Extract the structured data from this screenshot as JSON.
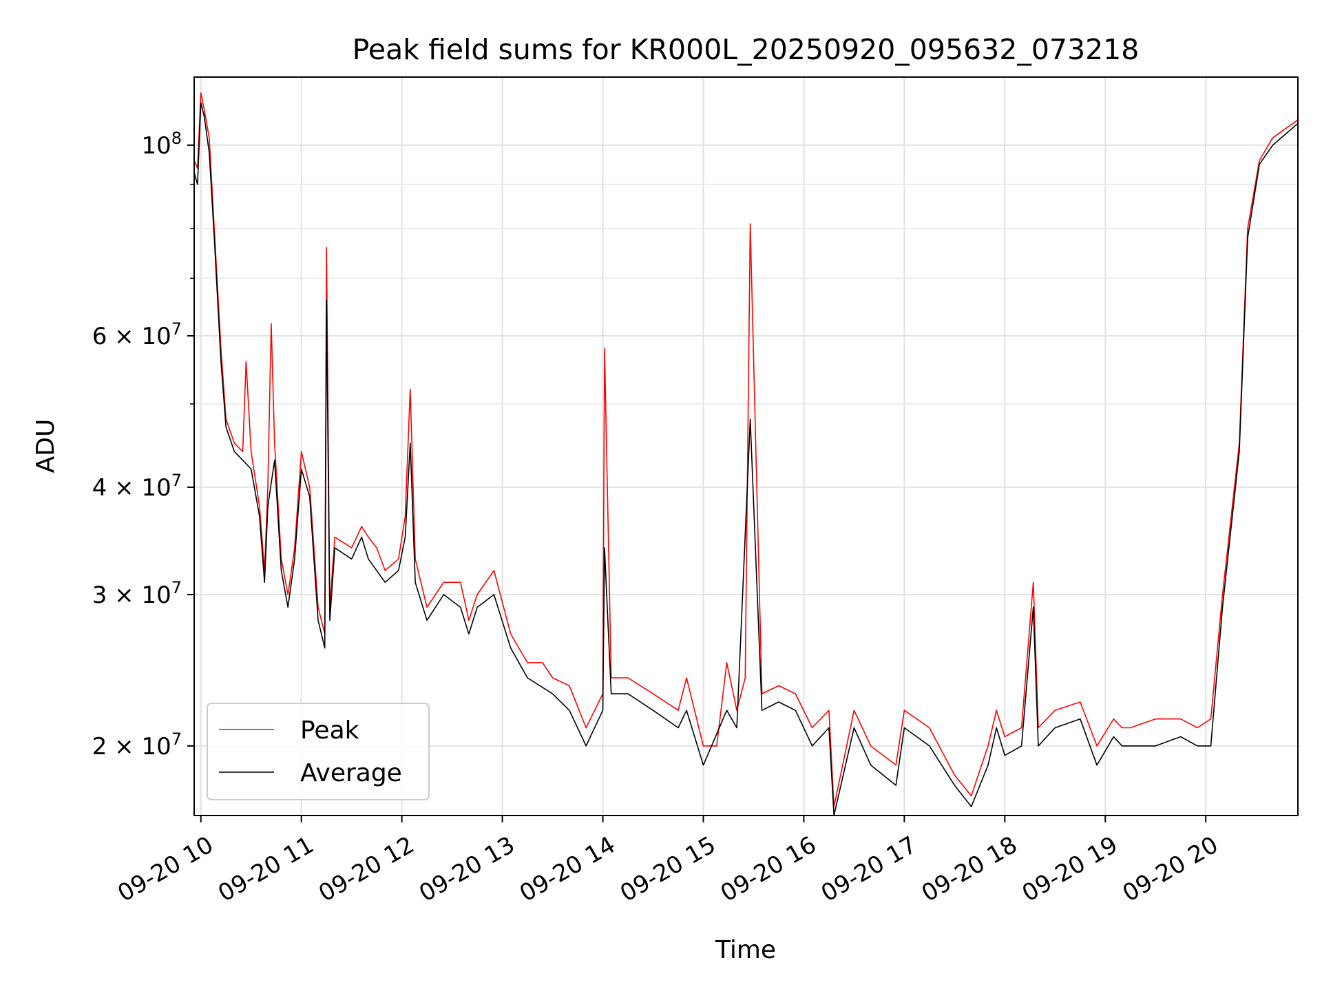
{
  "chart_data": {
    "type": "line",
    "title": "Peak field sums for KR000L_20250920_095632_073218",
    "xlabel": "Time",
    "ylabel": "ADU",
    "x_axis": {
      "kind": "time",
      "range": [
        "2025-09-20 09:56",
        "2025-09-20 20:55"
      ],
      "ticks": [
        "2025-09-20 10:00",
        "2025-09-20 11:00",
        "2025-09-20 12:00",
        "2025-09-20 13:00",
        "2025-09-20 14:00",
        "2025-09-20 15:00",
        "2025-09-20 16:00",
        "2025-09-20 17:00",
        "2025-09-20 18:00",
        "2025-09-20 19:00",
        "2025-09-20 20:00"
      ],
      "tick_labels": [
        "09-20 10",
        "09-20 11",
        "09-20 12",
        "09-20 13",
        "09-20 14",
        "09-20 15",
        "09-20 16",
        "09-20 17",
        "09-20 18",
        "09-20 19",
        "09-20 20"
      ]
    },
    "y_axis": {
      "scale": "log",
      "ylim": [
        16600000,
        120000000
      ],
      "major_ticks": [
        20000000,
        30000000,
        40000000,
        60000000,
        100000000
      ],
      "major_tick_labels": [
        {
          "mantissa": "2",
          "exponent": "7"
        },
        {
          "mantissa": "3",
          "exponent": "7"
        },
        {
          "mantissa": "4",
          "exponent": "7"
        },
        {
          "mantissa": "6",
          "exponent": "7"
        },
        {
          "mantissa": "",
          "exponent": "8"
        }
      ],
      "minor_ticks": [
        50000000,
        70000000,
        80000000,
        90000000
      ]
    },
    "grid": true,
    "legend": {
      "placement": "lower-left",
      "entries": [
        {
          "label": "Peak",
          "color": "#ff0000"
        },
        {
          "label": "Average",
          "color": "#000000"
        }
      ]
    },
    "series": [
      {
        "name": "Peak",
        "color": "#ff0000",
        "x": [
          "2025-09-20 09:56",
          "2025-09-20 09:58",
          "2025-09-20 10:00",
          "2025-09-20 10:02",
          "2025-09-20 10:05",
          "2025-09-20 10:08",
          "2025-09-20 10:12",
          "2025-09-20 10:15",
          "2025-09-20 10:20",
          "2025-09-20 10:25",
          "2025-09-20 10:27",
          "2025-09-20 10:30",
          "2025-09-20 10:35",
          "2025-09-20 10:38",
          "2025-09-20 10:40",
          "2025-09-20 10:42",
          "2025-09-20 10:44",
          "2025-09-20 10:48",
          "2025-09-20 10:52",
          "2025-09-20 10:56",
          "2025-09-20 11:00",
          "2025-09-20 11:05",
          "2025-09-20 11:10",
          "2025-09-20 11:14",
          "2025-09-20 11:15",
          "2025-09-20 11:17",
          "2025-09-20 11:20",
          "2025-09-20 11:30",
          "2025-09-20 11:36",
          "2025-09-20 11:40",
          "2025-09-20 11:45",
          "2025-09-20 11:50",
          "2025-09-20 11:58",
          "2025-09-20 12:02",
          "2025-09-20 12:05",
          "2025-09-20 12:08",
          "2025-09-20 12:15",
          "2025-09-20 12:25",
          "2025-09-20 12:35",
          "2025-09-20 12:40",
          "2025-09-20 12:45",
          "2025-09-20 12:55",
          "2025-09-20 13:05",
          "2025-09-20 13:15",
          "2025-09-20 13:24",
          "2025-09-20 13:30",
          "2025-09-20 13:40",
          "2025-09-20 13:50",
          "2025-09-20 14:00",
          "2025-09-20 14:01",
          "2025-09-20 14:05",
          "2025-09-20 14:15",
          "2025-09-20 14:30",
          "2025-09-20 14:45",
          "2025-09-20 14:50",
          "2025-09-20 15:00",
          "2025-09-20 15:08",
          "2025-09-20 15:14",
          "2025-09-20 15:20",
          "2025-09-20 15:25",
          "2025-09-20 15:28",
          "2025-09-20 15:35",
          "2025-09-20 15:45",
          "2025-09-20 15:55",
          "2025-09-20 16:05",
          "2025-09-20 16:15",
          "2025-09-20 16:18",
          "2025-09-20 16:30",
          "2025-09-20 16:40",
          "2025-09-20 16:55",
          "2025-09-20 17:00",
          "2025-09-20 17:15",
          "2025-09-20 17:30",
          "2025-09-20 17:40",
          "2025-09-20 17:50",
          "2025-09-20 17:55",
          "2025-09-20 18:00",
          "2025-09-20 18:10",
          "2025-09-20 18:17",
          "2025-09-20 18:20",
          "2025-09-20 18:30",
          "2025-09-20 18:45",
          "2025-09-20 18:55",
          "2025-09-20 19:05",
          "2025-09-20 19:10",
          "2025-09-20 19:15",
          "2025-09-20 19:30",
          "2025-09-20 19:45",
          "2025-09-20 19:55",
          "2025-09-20 20:03",
          "2025-09-20 20:10",
          "2025-09-20 20:20",
          "2025-09-20 20:25",
          "2025-09-20 20:32",
          "2025-09-20 20:40",
          "2025-09-20 20:55"
        ],
        "y": [
          96000000,
          94000000,
          115000000,
          110000000,
          102000000,
          80000000,
          58000000,
          48000000,
          45000000,
          44000000,
          56000000,
          44000000,
          38000000,
          32000000,
          40000000,
          62000000,
          45000000,
          33000000,
          30000000,
          34000000,
          44000000,
          40000000,
          29000000,
          27000000,
          76000000,
          29000000,
          35000000,
          34000000,
          36000000,
          35000000,
          34000000,
          32000000,
          33000000,
          37000000,
          52000000,
          33000000,
          29000000,
          31000000,
          31000000,
          28000000,
          30000000,
          32000000,
          27000000,
          25000000,
          25000000,
          24000000,
          23500000,
          21000000,
          23000000,
          58000000,
          24000000,
          24000000,
          23000000,
          22000000,
          24000000,
          20000000,
          20000000,
          25000000,
          22000000,
          24000000,
          81000000,
          23000000,
          23500000,
          23000000,
          21000000,
          22000000,
          17000000,
          22000000,
          20000000,
          19000000,
          22000000,
          21000000,
          18500000,
          17500000,
          20000000,
          22000000,
          20500000,
          21000000,
          31000000,
          21000000,
          22000000,
          22500000,
          20000000,
          21500000,
          21000000,
          21000000,
          21500000,
          21500000,
          21000000,
          21500000,
          30000000,
          45000000,
          80000000,
          96000000,
          102000000,
          107000000
        ]
      },
      {
        "name": "Average",
        "color": "#000000",
        "x": [
          "2025-09-20 09:56",
          "2025-09-20 09:58",
          "2025-09-20 10:00",
          "2025-09-20 10:02",
          "2025-09-20 10:05",
          "2025-09-20 10:08",
          "2025-09-20 10:12",
          "2025-09-20 10:15",
          "2025-09-20 10:20",
          "2025-09-20 10:25",
          "2025-09-20 10:30",
          "2025-09-20 10:35",
          "2025-09-20 10:38",
          "2025-09-20 10:40",
          "2025-09-20 10:44",
          "2025-09-20 10:48",
          "2025-09-20 10:52",
          "2025-09-20 10:56",
          "2025-09-20 11:00",
          "2025-09-20 11:05",
          "2025-09-20 11:10",
          "2025-09-20 11:14",
          "2025-09-20 11:15",
          "2025-09-20 11:17",
          "2025-09-20 11:20",
          "2025-09-20 11:30",
          "2025-09-20 11:36",
          "2025-09-20 11:40",
          "2025-09-20 11:50",
          "2025-09-20 11:58",
          "2025-09-20 12:02",
          "2025-09-20 12:05",
          "2025-09-20 12:08",
          "2025-09-20 12:15",
          "2025-09-20 12:25",
          "2025-09-20 12:35",
          "2025-09-20 12:40",
          "2025-09-20 12:45",
          "2025-09-20 12:55",
          "2025-09-20 13:05",
          "2025-09-20 13:15",
          "2025-09-20 13:30",
          "2025-09-20 13:40",
          "2025-09-20 13:50",
          "2025-09-20 14:00",
          "2025-09-20 14:01",
          "2025-09-20 14:05",
          "2025-09-20 14:15",
          "2025-09-20 14:30",
          "2025-09-20 14:45",
          "2025-09-20 14:50",
          "2025-09-20 15:00",
          "2025-09-20 15:14",
          "2025-09-20 15:20",
          "2025-09-20 15:28",
          "2025-09-20 15:35",
          "2025-09-20 15:45",
          "2025-09-20 15:55",
          "2025-09-20 16:05",
          "2025-09-20 16:15",
          "2025-09-20 16:18",
          "2025-09-20 16:30",
          "2025-09-20 16:40",
          "2025-09-20 16:55",
          "2025-09-20 17:00",
          "2025-09-20 17:15",
          "2025-09-20 17:30",
          "2025-09-20 17:40",
          "2025-09-20 17:50",
          "2025-09-20 17:55",
          "2025-09-20 18:00",
          "2025-09-20 18:10",
          "2025-09-20 18:17",
          "2025-09-20 18:20",
          "2025-09-20 18:30",
          "2025-09-20 18:45",
          "2025-09-20 18:55",
          "2025-09-20 19:05",
          "2025-09-20 19:10",
          "2025-09-20 19:15",
          "2025-09-20 19:30",
          "2025-09-20 19:45",
          "2025-09-20 19:55",
          "2025-09-20 20:03",
          "2025-09-20 20:10",
          "2025-09-20 20:20",
          "2025-09-20 20:25",
          "2025-09-20 20:32",
          "2025-09-20 20:40",
          "2025-09-20 20:55"
        ],
        "y": [
          93000000,
          90000000,
          112000000,
          108000000,
          98000000,
          78000000,
          56000000,
          47000000,
          44000000,
          43000000,
          42000000,
          37000000,
          31000000,
          38000000,
          43000000,
          32000000,
          29000000,
          33000000,
          42000000,
          39000000,
          28000000,
          26000000,
          66000000,
          28000000,
          34000000,
          33000000,
          35000000,
          33000000,
          31000000,
          32000000,
          35000000,
          45000000,
          31000000,
          28000000,
          30000000,
          29000000,
          27000000,
          29000000,
          30000000,
          26000000,
          24000000,
          23000000,
          22000000,
          20000000,
          22000000,
          34000000,
          23000000,
          23000000,
          22000000,
          21000000,
          22000000,
          19000000,
          22000000,
          21000000,
          48000000,
          22000000,
          22500000,
          22000000,
          20000000,
          21000000,
          16600000,
          21000000,
          19000000,
          18000000,
          21000000,
          20000000,
          18000000,
          17000000,
          19000000,
          21000000,
          19500000,
          20000000,
          29000000,
          20000000,
          21000000,
          21500000,
          19000000,
          20500000,
          20000000,
          20000000,
          20000000,
          20500000,
          20000000,
          20000000,
          29000000,
          44000000,
          78000000,
          95000000,
          100000000,
          106000000
        ]
      }
    ]
  }
}
